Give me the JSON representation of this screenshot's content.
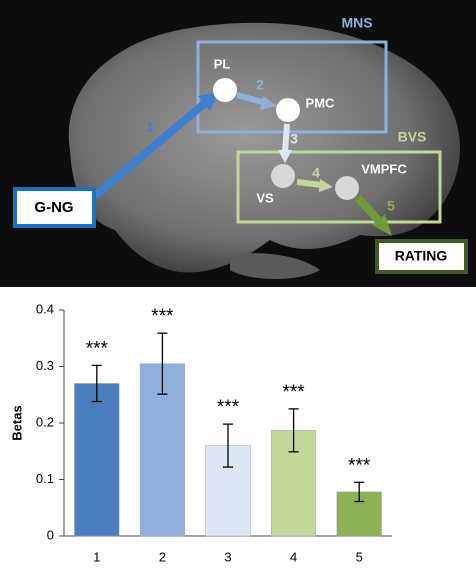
{
  "diagram": {
    "boxes": {
      "mns": "MNS",
      "bvs": "BVS"
    },
    "nodes": {
      "pl": "PL",
      "pmc": "PMC",
      "vs": "VS",
      "vmpfc": "VMPFC"
    },
    "endpoints": {
      "input": "G-NG",
      "output": "RATING"
    },
    "arrows": [
      "1",
      "2",
      "3",
      "4",
      "5"
    ]
  },
  "chart_data": {
    "type": "bar",
    "ylabel": "Betas",
    "categories": [
      "1",
      "2",
      "3",
      "4",
      "5"
    ],
    "values": [
      0.27,
      0.305,
      0.16,
      0.187,
      0.078
    ],
    "errors": [
      0.032,
      0.054,
      0.038,
      0.038,
      0.017
    ],
    "annotations": [
      "***",
      "***",
      "***",
      "***",
      "***"
    ],
    "colors": [
      "#4a7ebf",
      "#8fb0dc",
      "#dde7f3",
      "#c3d79b",
      "#8db155"
    ],
    "ylim": [
      0,
      0.4
    ],
    "yticks": [
      0,
      0.1,
      0.2,
      0.3,
      0.4
    ],
    "grid": false
  }
}
